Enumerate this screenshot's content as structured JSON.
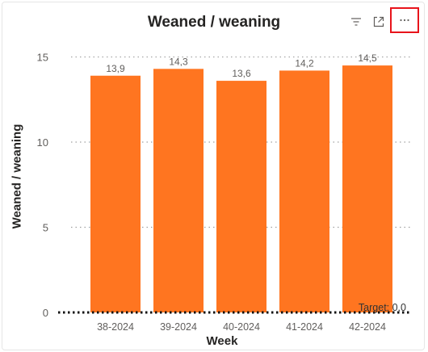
{
  "toolbar": {
    "filter_icon": "filter-icon",
    "focus_icon": "focus-mode-icon",
    "more_icon": "more-options-icon"
  },
  "chart_data": {
    "type": "bar",
    "title": "Weaned / weaning",
    "xlabel": "Week",
    "ylabel": "Weaned / weaning",
    "categories": [
      "38-2024",
      "39-2024",
      "40-2024",
      "41-2024",
      "42-2024"
    ],
    "values": [
      13.9,
      14.3,
      13.6,
      14.2,
      14.5
    ],
    "value_labels": [
      "13,9",
      "14,3",
      "13,6",
      "14,2",
      "14,5"
    ],
    "ylim": [
      0,
      15.5
    ],
    "yticks": [
      0,
      5,
      10,
      15
    ],
    "bar_color": "#ff7520",
    "grid": true,
    "target": {
      "label": "Target: 0,0",
      "value": 0
    }
  }
}
